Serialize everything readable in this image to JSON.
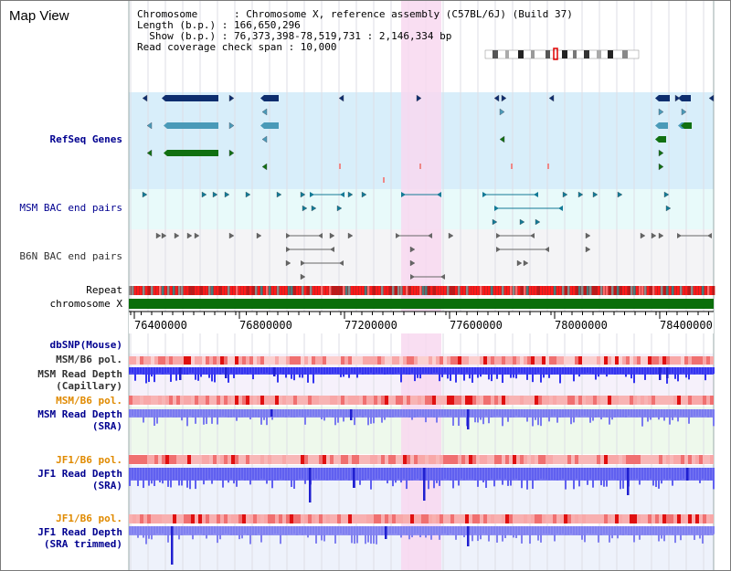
{
  "title": "Map View",
  "info": {
    "chromosome": "Chromosome      : Chromosome X, reference assembly (C57BL/6J) (Build 37)",
    "length": "Length (b.p.) : 166,650,296",
    "show": "  Show (b.p.) : 76,373,398-78,519,731 : 2,146,334 bp",
    "span": "Read coverage check span : 10,000"
  },
  "tracks": {
    "refseq": "RefSeq Genes",
    "msm_bac": "MSM BAC end pairs",
    "b6n_bac": "B6N BAC end pairs",
    "repeat": "Repeat",
    "chromosome": "chromosome X",
    "dbsnp": "dbSNP(Mouse)",
    "msm_b6_pol_cap": "MSM/B6 pol.",
    "msm_depth_cap_1": "MSM Read Depth",
    "msm_depth_cap_2": "(Capillary)",
    "msm_b6_pol_sra": "MSM/B6 pol.",
    "msm_depth_sra_1": "MSM Read Depth",
    "msm_depth_sra_2": "(SRA)",
    "jf1_b6_pol_1": "JF1/B6 pol.",
    "jf1_depth_sra_1": "JF1 Read Depth",
    "jf1_depth_sra_2": "(SRA)",
    "jf1_b6_pol_2": "JF1/B6 pol.",
    "jf1_depth_trim_1": "JF1 Read Depth",
    "jf1_depth_trim_2": "(SRA trimmed)"
  },
  "ruler_ticks": [
    "76400000",
    "76800000",
    "77200000",
    "77600000",
    "78000000",
    "78400000"
  ],
  "colors": {
    "highlight": "#f8d8f0",
    "refseq_bg": "#d8eefa",
    "bac_bg": "#e8fafa",
    "b6n_bg": "#f4f4f6",
    "chromosome_bar": "#0a6e0a",
    "gene_dark": "#0d2d6e",
    "gene_mid": "#4a9ab8",
    "gene_green": "#117011",
    "depth_blue": "#3434f0",
    "label_navy": "#000090",
    "label_orange": "#e08a00"
  }
}
